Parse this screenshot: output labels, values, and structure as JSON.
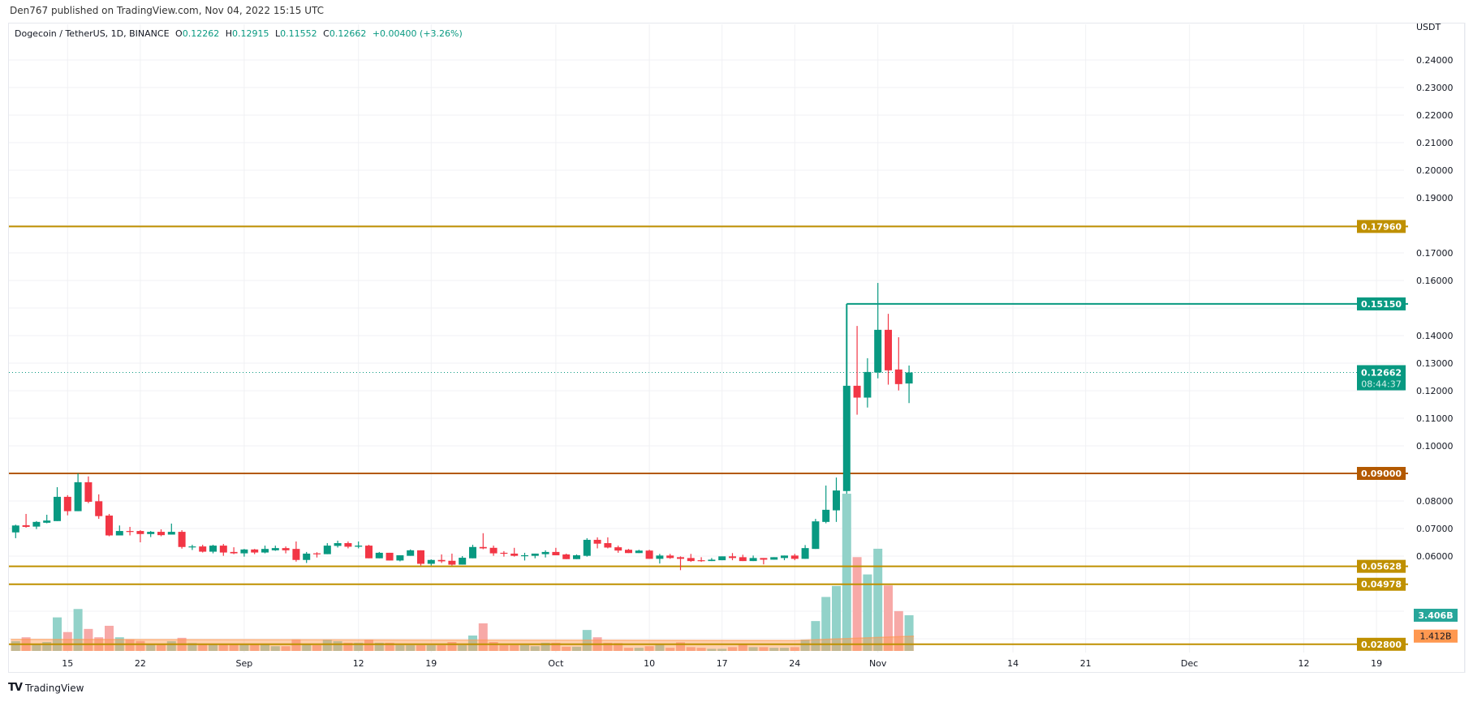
{
  "publish_line": "Den767 published on TradingView.com, Nov 04, 2022 15:15 UTC",
  "legend": {
    "symbol": "Dogecoin / TetherUS, 1D, BINANCE",
    "open_label": "O",
    "open": "0.12262",
    "high_label": "H",
    "high": "0.12915",
    "low_label": "L",
    "low": "0.11552",
    "close_label": "C",
    "close": "0.12662",
    "change": "+0.00400 (+3.26%)"
  },
  "footer": {
    "brand": "TradingView",
    "logo_text": "TV"
  },
  "colors": {
    "up": "#089981",
    "down": "#f23645",
    "gold": "#bf9000",
    "orange": "#b35900",
    "volume_ma": "#ff9850"
  },
  "chart_data": {
    "type": "candlestick",
    "currency": "USDT",
    "ylim": [
      0.028,
      0.245
    ],
    "grid": true,
    "price_ticks": [
      "0.24000",
      "0.23000",
      "0.22000",
      "0.21000",
      "0.20000",
      "0.19000",
      "0.17000",
      "0.16000",
      "0.14000",
      "0.13000",
      "0.12000",
      "0.11000",
      "0.10000",
      "0.08000",
      "0.07000",
      "0.06000"
    ],
    "x_ticks": [
      {
        "label": "15",
        "date": "2022-08-15"
      },
      {
        "label": "22",
        "date": "2022-08-22"
      },
      {
        "label": "Sep",
        "date": "2022-09-01"
      },
      {
        "label": "12",
        "date": "2022-09-12"
      },
      {
        "label": "19",
        "date": "2022-09-19"
      },
      {
        "label": "Oct",
        "date": "2022-10-01"
      },
      {
        "label": "10",
        "date": "2022-10-10"
      },
      {
        "label": "17",
        "date": "2022-10-17"
      },
      {
        "label": "24",
        "date": "2022-10-24"
      },
      {
        "label": "Nov",
        "date": "2022-11-01"
      },
      {
        "label": "14",
        "date": "2022-11-14"
      },
      {
        "label": "21",
        "date": "2022-11-21"
      },
      {
        "label": "Dec",
        "date": "2022-12-01"
      },
      {
        "label": "12",
        "date": "2022-12-12"
      },
      {
        "label": "19",
        "date": "2022-12-19"
      }
    ],
    "candle_fields": [
      "date",
      "open",
      "high",
      "low",
      "close",
      "volume_billions"
    ],
    "candles": [
      [
        "2022-08-10",
        0.0686,
        0.0714,
        0.0665,
        0.0711,
        0.93
      ],
      [
        "2022-08-11",
        0.0712,
        0.0753,
        0.0703,
        0.0706,
        1.3
      ],
      [
        "2022-08-12",
        0.0707,
        0.0727,
        0.0698,
        0.0724,
        0.6
      ],
      [
        "2022-08-13",
        0.0721,
        0.075,
        0.0719,
        0.0729,
        0.85
      ],
      [
        "2022-08-14",
        0.0727,
        0.085,
        0.0727,
        0.0815,
        3.2
      ],
      [
        "2022-08-15",
        0.0815,
        0.0821,
        0.0748,
        0.0763,
        1.8
      ],
      [
        "2022-08-16",
        0.0763,
        0.09,
        0.0763,
        0.0868,
        4.0
      ],
      [
        "2022-08-17",
        0.0868,
        0.0889,
        0.0792,
        0.0797,
        2.1
      ],
      [
        "2022-08-18",
        0.0799,
        0.0824,
        0.0735,
        0.0745,
        1.3
      ],
      [
        "2022-08-19",
        0.0747,
        0.0753,
        0.0672,
        0.0675,
        2.4
      ],
      [
        "2022-08-20",
        0.0675,
        0.0711,
        0.0675,
        0.0691,
        1.3
      ],
      [
        "2022-08-21",
        0.0691,
        0.0706,
        0.0675,
        0.0688,
        1.1
      ],
      [
        "2022-08-22",
        0.0691,
        0.0694,
        0.065,
        0.068,
        0.95
      ],
      [
        "2022-08-23",
        0.068,
        0.0691,
        0.0669,
        0.0688,
        0.6
      ],
      [
        "2022-08-24",
        0.0688,
        0.0697,
        0.0672,
        0.0676,
        0.6
      ],
      [
        "2022-08-25",
        0.0678,
        0.0718,
        0.0678,
        0.0688,
        0.93
      ],
      [
        "2022-08-26",
        0.0688,
        0.0694,
        0.0627,
        0.0633,
        1.25
      ],
      [
        "2022-08-27",
        0.0633,
        0.0641,
        0.0622,
        0.0635,
        0.75
      ],
      [
        "2022-08-28",
        0.0635,
        0.0641,
        0.0613,
        0.0616,
        0.6
      ],
      [
        "2022-08-29",
        0.0616,
        0.0641,
        0.061,
        0.0638,
        0.6
      ],
      [
        "2022-08-30",
        0.0638,
        0.0644,
        0.0601,
        0.0613,
        0.6
      ],
      [
        "2022-08-31",
        0.0615,
        0.0632,
        0.0607,
        0.061,
        0.6
      ],
      [
        "2022-09-01",
        0.061,
        0.0626,
        0.0598,
        0.0624,
        0.6
      ],
      [
        "2022-09-02",
        0.0624,
        0.0626,
        0.0607,
        0.0613,
        0.6
      ],
      [
        "2022-09-03",
        0.0613,
        0.0638,
        0.061,
        0.0626,
        0.6
      ],
      [
        "2022-09-04",
        0.0621,
        0.0638,
        0.0619,
        0.0629,
        0.45
      ],
      [
        "2022-09-05",
        0.0629,
        0.0635,
        0.061,
        0.0621,
        0.45
      ],
      [
        "2022-09-06",
        0.0626,
        0.0653,
        0.058,
        0.0586,
        1.1
      ],
      [
        "2022-09-07",
        0.0586,
        0.0615,
        0.0575,
        0.0609,
        0.6
      ],
      [
        "2022-09-08",
        0.061,
        0.0614,
        0.0595,
        0.0607,
        0.55
      ],
      [
        "2022-09-09",
        0.0607,
        0.0647,
        0.0607,
        0.0638,
        1.08
      ],
      [
        "2022-09-10",
        0.0637,
        0.0656,
        0.0631,
        0.0647,
        0.93
      ],
      [
        "2022-09-11",
        0.0647,
        0.0653,
        0.0628,
        0.0634,
        0.78
      ],
      [
        "2022-09-12",
        0.0634,
        0.0653,
        0.0628,
        0.0638,
        0.78
      ],
      [
        "2022-09-13",
        0.0638,
        0.0641,
        0.0592,
        0.0592,
        1.08
      ],
      [
        "2022-09-14",
        0.0592,
        0.0615,
        0.0592,
        0.0612,
        0.78
      ],
      [
        "2022-09-15",
        0.0612,
        0.0612,
        0.0584,
        0.0584,
        0.78
      ],
      [
        "2022-09-16",
        0.0584,
        0.0603,
        0.0581,
        0.0603,
        0.55
      ],
      [
        "2022-09-17",
        0.0601,
        0.0624,
        0.0601,
        0.0621,
        0.55
      ],
      [
        "2022-09-18",
        0.0621,
        0.0621,
        0.0566,
        0.0572,
        0.55
      ],
      [
        "2022-09-19",
        0.0572,
        0.0588,
        0.0566,
        0.0586,
        0.55
      ],
      [
        "2022-09-20",
        0.0586,
        0.0606,
        0.0575,
        0.0581,
        0.55
      ],
      [
        "2022-09-21",
        0.0583,
        0.0609,
        0.0566,
        0.0569,
        0.85
      ],
      [
        "2022-09-22",
        0.0569,
        0.06,
        0.0569,
        0.0594,
        0.55
      ],
      [
        "2022-09-23",
        0.0592,
        0.0641,
        0.0592,
        0.0633,
        1.47
      ],
      [
        "2022-09-24",
        0.0633,
        0.0683,
        0.0625,
        0.0628,
        2.63
      ],
      [
        "2022-09-25",
        0.063,
        0.0638,
        0.0601,
        0.061,
        0.85
      ],
      [
        "2022-09-26",
        0.0612,
        0.0618,
        0.0598,
        0.061,
        0.55
      ],
      [
        "2022-09-27",
        0.0609,
        0.063,
        0.0598,
        0.0601,
        0.55
      ],
      [
        "2022-09-28",
        0.0601,
        0.0612,
        0.0584,
        0.0603,
        0.55
      ],
      [
        "2022-09-29",
        0.0601,
        0.0609,
        0.0592,
        0.0609,
        0.45
      ],
      [
        "2022-09-30",
        0.0607,
        0.0621,
        0.0595,
        0.0615,
        0.78
      ],
      [
        "2022-10-01",
        0.0615,
        0.063,
        0.0603,
        0.0603,
        0.78
      ],
      [
        "2022-10-02",
        0.0606,
        0.0609,
        0.0589,
        0.0589,
        0.4
      ],
      [
        "2022-10-03",
        0.0589,
        0.0606,
        0.0589,
        0.0603,
        0.4
      ],
      [
        "2022-10-04",
        0.0601,
        0.0665,
        0.0598,
        0.0659,
        2.0
      ],
      [
        "2022-10-05",
        0.0659,
        0.0668,
        0.0628,
        0.0645,
        1.3
      ],
      [
        "2022-10-06",
        0.0647,
        0.0668,
        0.0628,
        0.0631,
        0.78
      ],
      [
        "2022-10-07",
        0.0632,
        0.0638,
        0.0612,
        0.062,
        0.75
      ],
      [
        "2022-10-08",
        0.0623,
        0.0626,
        0.0611,
        0.0611,
        0.3
      ],
      [
        "2022-10-09",
        0.0611,
        0.0623,
        0.0611,
        0.062,
        0.3
      ],
      [
        "2022-10-10",
        0.062,
        0.0623,
        0.059,
        0.059,
        0.45
      ],
      [
        "2022-10-11",
        0.059,
        0.0608,
        0.0573,
        0.0602,
        0.6
      ],
      [
        "2022-10-12",
        0.0602,
        0.0608,
        0.059,
        0.0593,
        0.3
      ],
      [
        "2022-10-13",
        0.0596,
        0.0599,
        0.0549,
        0.059,
        0.82
      ],
      [
        "2022-10-14",
        0.0593,
        0.0608,
        0.0579,
        0.0582,
        0.36
      ],
      [
        "2022-10-15",
        0.0585,
        0.0596,
        0.0579,
        0.0582,
        0.3
      ],
      [
        "2022-10-16",
        0.0582,
        0.0593,
        0.0582,
        0.0587,
        0.2
      ],
      [
        "2022-10-17",
        0.0585,
        0.0599,
        0.0585,
        0.0599,
        0.2
      ],
      [
        "2022-10-18",
        0.0599,
        0.0611,
        0.0585,
        0.0593,
        0.36
      ],
      [
        "2022-10-19",
        0.0596,
        0.0605,
        0.0582,
        0.0582,
        0.6
      ],
      [
        "2022-10-20",
        0.0582,
        0.0602,
        0.0582,
        0.0593,
        0.36
      ],
      [
        "2022-10-21",
        0.0593,
        0.0593,
        0.057,
        0.0587,
        0.36
      ],
      [
        "2022-10-22",
        0.0587,
        0.0596,
        0.0587,
        0.0596,
        0.3
      ],
      [
        "2022-10-23",
        0.0593,
        0.0602,
        0.0585,
        0.0602,
        0.3
      ],
      [
        "2022-10-24",
        0.0602,
        0.0608,
        0.0585,
        0.059,
        0.36
      ],
      [
        "2022-10-25",
        0.059,
        0.064,
        0.059,
        0.0629,
        1.07
      ],
      [
        "2022-10-26",
        0.0626,
        0.0735,
        0.0626,
        0.0726,
        2.85
      ],
      [
        "2022-10-27",
        0.0724,
        0.0856,
        0.0719,
        0.0768,
        5.15
      ],
      [
        "2022-10-28",
        0.0766,
        0.0885,
        0.0724,
        0.0838,
        6.2
      ],
      [
        "2022-10-29",
        0.0836,
        0.122,
        0.0826,
        0.1218,
        15.0
      ],
      [
        "2022-10-30",
        0.1218,
        0.1435,
        0.1113,
        0.1175,
        8.95
      ],
      [
        "2022-10-31",
        0.1175,
        0.1318,
        0.1139,
        0.1268,
        7.3
      ],
      [
        "2022-11-01",
        0.1266,
        0.1591,
        0.1245,
        0.1421,
        9.75
      ],
      [
        "2022-11-02",
        0.1421,
        0.1479,
        0.1222,
        0.1274,
        6.25
      ],
      [
        "2022-11-03",
        0.1277,
        0.1394,
        0.1201,
        0.1224,
        3.8
      ],
      [
        "2022-11-04",
        0.12262,
        0.12915,
        0.11552,
        0.12662,
        3.406
      ]
    ],
    "levels": [
      {
        "price": 0.1796,
        "label": "0.17960",
        "color": "#bf9000"
      },
      {
        "price": 0.1515,
        "label": "0.15150",
        "color": "#089981",
        "start_date": "2022-10-29"
      },
      {
        "price": 0.09,
        "label": "0.09000",
        "color": "#b35900"
      },
      {
        "price": 0.05628,
        "label": "0.05628",
        "color": "#bf9000"
      },
      {
        "price": 0.04978,
        "label": "0.04978",
        "color": "#bf9000"
      },
      {
        "price": 0.028,
        "label": "0.02800",
        "color": "#bf9000"
      }
    ],
    "last_price": {
      "price": 0.12662,
      "label": "0.12662",
      "countdown": "08:44:37"
    },
    "volume_label": "3.406B",
    "volume_ma": {
      "label": "1.412B",
      "value": 1.412
    }
  }
}
